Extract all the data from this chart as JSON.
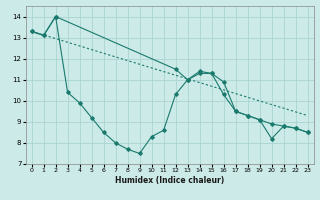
{
  "xlabel": "Humidex (Indice chaleur)",
  "xlim": [
    -0.5,
    23.5
  ],
  "ylim": [
    7,
    14.5
  ],
  "yticks": [
    7,
    8,
    9,
    10,
    11,
    12,
    13,
    14
  ],
  "xticks": [
    0,
    1,
    2,
    3,
    4,
    5,
    6,
    7,
    8,
    9,
    10,
    11,
    12,
    13,
    14,
    15,
    16,
    17,
    18,
    19,
    20,
    21,
    22,
    23
  ],
  "background_color": "#cceae7",
  "grid_color": "#aad4d0",
  "line_color": "#1a7a6e",
  "series": [
    {
      "x": [
        0,
        1,
        2,
        12,
        13,
        14,
        15,
        16,
        17,
        18,
        19,
        20,
        21,
        22,
        23
      ],
      "y": [
        13.3,
        13.1,
        14.0,
        11.5,
        11.0,
        11.3,
        11.3,
        10.9,
        9.5,
        9.3,
        9.1,
        8.9,
        8.8,
        8.7,
        8.5
      ]
    },
    {
      "x": [
        0,
        1,
        2,
        3,
        4,
        5,
        6,
        7,
        8,
        9,
        10,
        11,
        12,
        13,
        14,
        15,
        16,
        17,
        18,
        19,
        20,
        21,
        22,
        23
      ],
      "y": [
        13.3,
        13.1,
        14.0,
        10.4,
        9.9,
        9.2,
        8.5,
        8.0,
        7.7,
        7.5,
        8.3,
        8.6,
        10.3,
        11.0,
        11.4,
        11.3,
        10.3,
        9.5,
        9.3,
        9.1,
        8.2,
        8.8,
        8.7,
        8.5
      ]
    },
    {
      "x": [
        0,
        23
      ],
      "y": [
        13.3,
        9.3
      ]
    }
  ]
}
